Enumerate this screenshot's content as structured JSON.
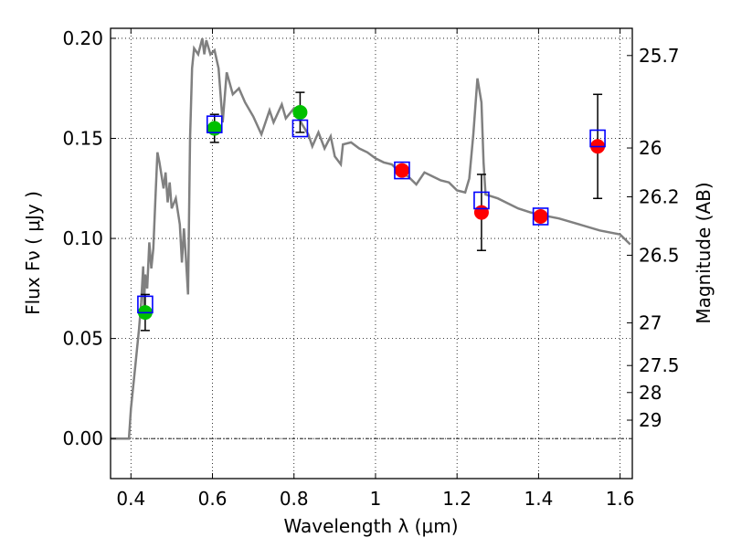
{
  "chart_data": {
    "type": "scatter",
    "xlabel": "Wavelength  λ (μm)",
    "ylabel": "Flux  Fν  ( μJy )",
    "ylabel_right": "Magnitude (AB)",
    "xlim": [
      0.35,
      1.63
    ],
    "ylim": [
      -0.02,
      0.205
    ],
    "grid": true,
    "x_ticks": [
      0.4,
      0.6,
      0.8,
      1.0,
      1.2,
      1.4,
      1.6
    ],
    "x_tick_labels": [
      "0.4",
      "0.6",
      "0.8",
      "1",
      "1.2",
      "1.4",
      "1.6"
    ],
    "y_ticks": [
      0.0,
      0.05,
      0.1,
      0.15,
      0.2
    ],
    "y_tick_labels": [
      "0.00",
      "0.05",
      "0.10",
      "0.15",
      "0.20"
    ],
    "mag_ticks": [
      {
        "label": "25.7",
        "flux": 0.1914
      },
      {
        "label": "26",
        "flux": 0.1452
      },
      {
        "label": "26.2",
        "flux": 0.1208
      },
      {
        "label": "26.5",
        "flux": 0.0916
      },
      {
        "label": "27",
        "flux": 0.0578
      },
      {
        "label": "27.5",
        "flux": 0.0365
      },
      {
        "label": "28",
        "flux": 0.023
      },
      {
        "label": "29",
        "flux": 0.0092
      }
    ],
    "model_sed": {
      "color": "#808080",
      "points": [
        [
          0.35,
          0.0
        ],
        [
          0.39,
          0.0
        ],
        [
          0.395,
          0.0
        ],
        [
          0.4,
          0.015
        ],
        [
          0.41,
          0.035
        ],
        [
          0.42,
          0.055
        ],
        [
          0.425,
          0.068
        ],
        [
          0.43,
          0.086
        ],
        [
          0.432,
          0.065
        ],
        [
          0.435,
          0.082
        ],
        [
          0.44,
          0.075
        ],
        [
          0.445,
          0.098
        ],
        [
          0.45,
          0.085
        ],
        [
          0.455,
          0.095
        ],
        [
          0.46,
          0.12
        ],
        [
          0.465,
          0.143
        ],
        [
          0.47,
          0.138
        ],
        [
          0.48,
          0.125
        ],
        [
          0.485,
          0.133
        ],
        [
          0.49,
          0.118
        ],
        [
          0.495,
          0.128
        ],
        [
          0.5,
          0.115
        ],
        [
          0.51,
          0.12
        ],
        [
          0.52,
          0.107
        ],
        [
          0.525,
          0.088
        ],
        [
          0.53,
          0.105
        ],
        [
          0.535,
          0.09
        ],
        [
          0.54,
          0.072
        ],
        [
          0.545,
          0.15
        ],
        [
          0.55,
          0.185
        ],
        [
          0.555,
          0.195
        ],
        [
          0.565,
          0.192
        ],
        [
          0.575,
          0.2
        ],
        [
          0.58,
          0.192
        ],
        [
          0.585,
          0.199
        ],
        [
          0.595,
          0.192
        ],
        [
          0.605,
          0.194
        ],
        [
          0.615,
          0.185
        ],
        [
          0.625,
          0.158
        ],
        [
          0.635,
          0.183
        ],
        [
          0.65,
          0.172
        ],
        [
          0.665,
          0.175
        ],
        [
          0.68,
          0.168
        ],
        [
          0.7,
          0.161
        ],
        [
          0.72,
          0.152
        ],
        [
          0.74,
          0.164
        ],
        [
          0.75,
          0.158
        ],
        [
          0.77,
          0.167
        ],
        [
          0.78,
          0.16
        ],
        [
          0.8,
          0.165
        ],
        [
          0.82,
          0.157
        ],
        [
          0.835,
          0.152
        ],
        [
          0.845,
          0.146
        ],
        [
          0.86,
          0.153
        ],
        [
          0.875,
          0.145
        ],
        [
          0.89,
          0.151
        ],
        [
          0.9,
          0.141
        ],
        [
          0.915,
          0.137
        ],
        [
          0.92,
          0.147
        ],
        [
          0.94,
          0.148
        ],
        [
          0.96,
          0.145
        ],
        [
          0.98,
          0.143
        ],
        [
          1.0,
          0.14
        ],
        [
          1.02,
          0.138
        ],
        [
          1.04,
          0.137
        ],
        [
          1.06,
          0.133
        ],
        [
          1.08,
          0.131
        ],
        [
          1.1,
          0.127
        ],
        [
          1.12,
          0.133
        ],
        [
          1.14,
          0.131
        ],
        [
          1.16,
          0.129
        ],
        [
          1.18,
          0.128
        ],
        [
          1.2,
          0.124
        ],
        [
          1.22,
          0.123
        ],
        [
          1.23,
          0.13
        ],
        [
          1.24,
          0.152
        ],
        [
          1.25,
          0.18
        ],
        [
          1.26,
          0.168
        ],
        [
          1.265,
          0.138
        ],
        [
          1.27,
          0.122
        ],
        [
          1.3,
          0.12
        ],
        [
          1.32,
          0.118
        ],
        [
          1.35,
          0.115
        ],
        [
          1.38,
          0.113
        ],
        [
          1.4,
          0.112
        ],
        [
          1.45,
          0.11
        ],
        [
          1.5,
          0.107
        ],
        [
          1.55,
          0.104
        ],
        [
          1.6,
          0.102
        ],
        [
          1.625,
          0.097
        ]
      ]
    },
    "series": [
      {
        "color": "#00c000",
        "points": [
          {
            "x": 0.435,
            "y": 0.063,
            "err": 0.009
          },
          {
            "x": 0.605,
            "y": 0.155,
            "err": 0.007
          },
          {
            "x": 0.815,
            "y": 0.163,
            "err": 0.01
          }
        ]
      },
      {
        "color": "#ff0000",
        "points": [
          {
            "x": 1.065,
            "y": 0.134,
            "err": 0
          },
          {
            "x": 1.26,
            "y": 0.113,
            "err": 0.019
          },
          {
            "x": 1.405,
            "y": 0.111,
            "err": 0
          },
          {
            "x": 1.545,
            "y": 0.146,
            "err": 0.026
          }
        ]
      },
      {
        "color": "#0000ff",
        "marker": "square-open",
        "points": [
          {
            "x": 0.435,
            "y": 0.067
          },
          {
            "x": 0.605,
            "y": 0.157
          },
          {
            "x": 0.815,
            "y": 0.155
          },
          {
            "x": 1.065,
            "y": 0.134
          },
          {
            "x": 1.26,
            "y": 0.119
          },
          {
            "x": 1.405,
            "y": 0.111
          },
          {
            "x": 1.545,
            "y": 0.15
          }
        ]
      }
    ]
  }
}
